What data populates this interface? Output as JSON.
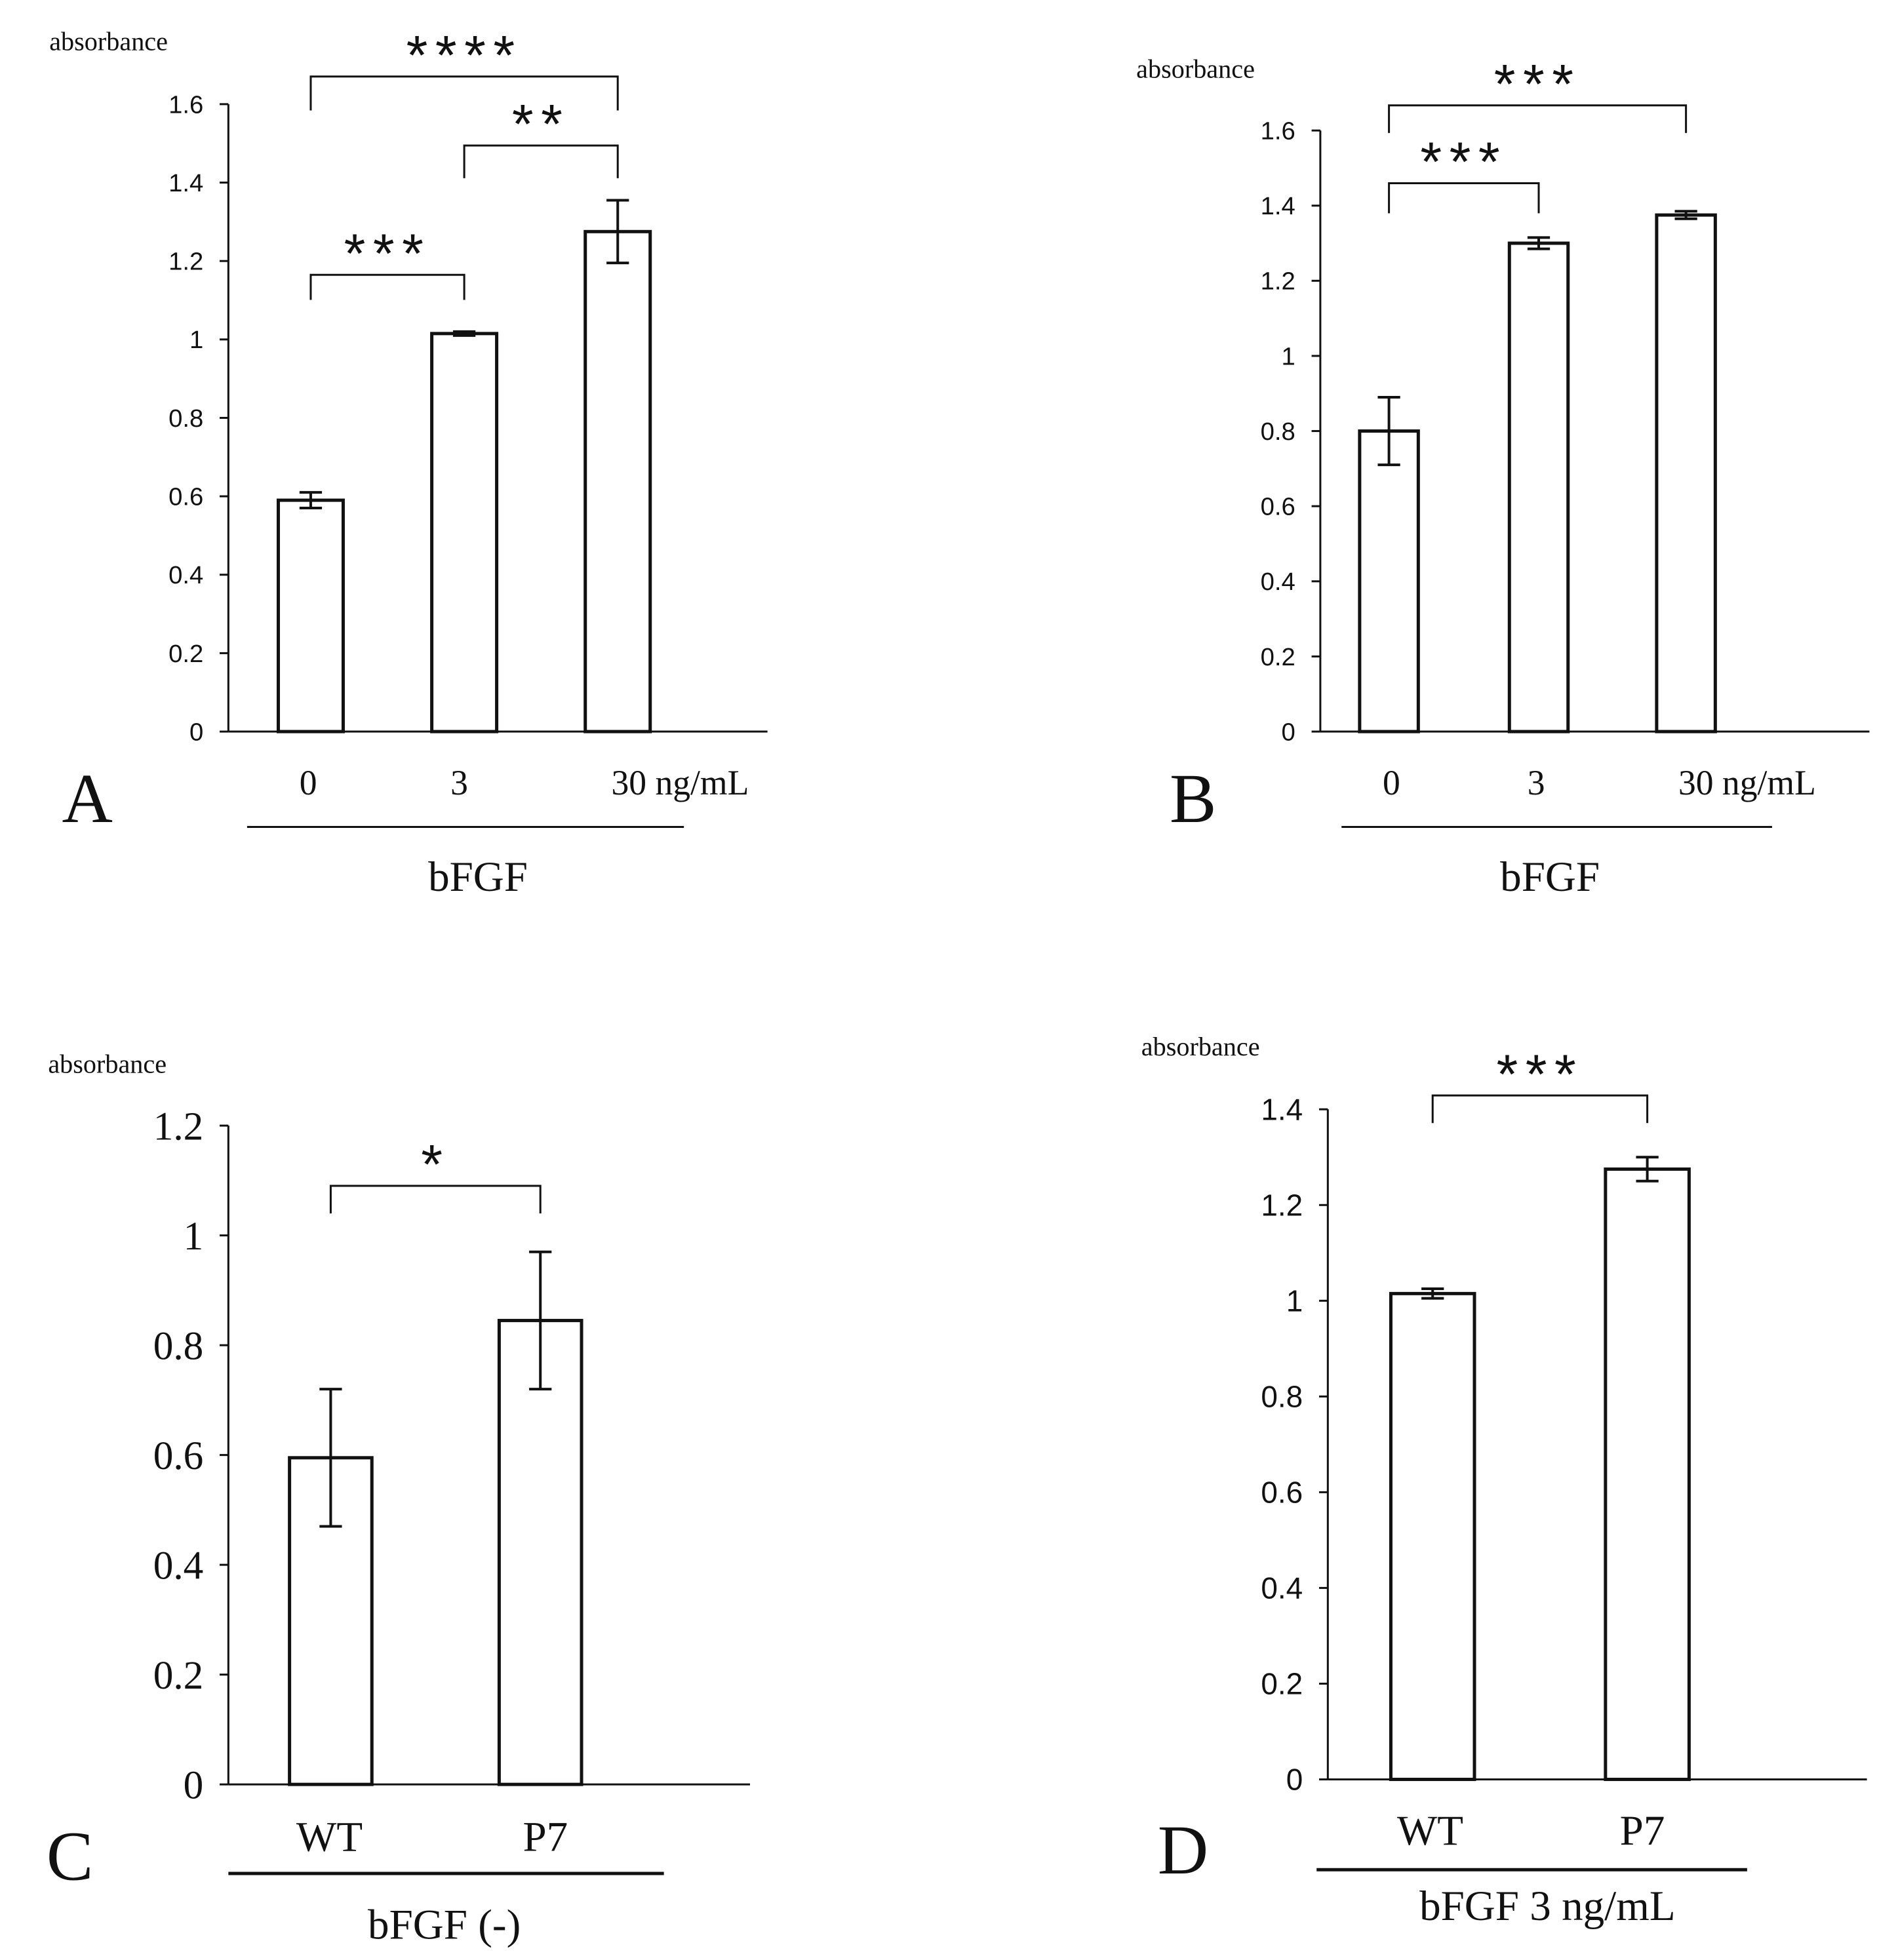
{
  "figure": {
    "colors": {
      "ink": "#111111",
      "bar_fill": "#ffffff",
      "background": "#ffffff"
    }
  },
  "chart_data": [
    {
      "panel": "A",
      "type": "bar",
      "ylabel": "absorbance",
      "categories": [
        "0",
        "3",
        "30 ng/mL"
      ],
      "values": [
        0.59,
        1.015,
        1.275
      ],
      "errors": [
        0.02,
        0.005,
        0.08
      ],
      "yticks": [
        "0",
        "0.2",
        "0.4",
        "0.6",
        "0.8",
        "1",
        "1.2",
        "1.4",
        "1.6"
      ],
      "ylim": [
        0,
        1.6
      ],
      "group_label": "bFGF",
      "significance": [
        {
          "from": 0,
          "to": 1,
          "label": "***"
        },
        {
          "from": 1,
          "to": 2,
          "label": "**"
        },
        {
          "from": 0,
          "to": 2,
          "label": "****"
        }
      ]
    },
    {
      "panel": "B",
      "type": "bar",
      "ylabel": "absorbance",
      "categories": [
        "0",
        "3",
        "30 ng/mL"
      ],
      "values": [
        0.8,
        1.3,
        1.375
      ],
      "errors": [
        0.09,
        0.015,
        0.01
      ],
      "yticks": [
        "0",
        "0.2",
        "0.4",
        "0.6",
        "0.8",
        "1",
        "1.2",
        "1.4",
        "1.6"
      ],
      "ylim": [
        0,
        1.6
      ],
      "group_label": "bFGF",
      "significance": [
        {
          "from": 0,
          "to": 1,
          "label": "***"
        },
        {
          "from": 0,
          "to": 2,
          "label": "***"
        }
      ]
    },
    {
      "panel": "C",
      "type": "bar",
      "ylabel": "absorbance",
      "categories": [
        "WT",
        "P7"
      ],
      "values": [
        0.595,
        0.845
      ],
      "errors": [
        0.125,
        0.125
      ],
      "yticks": [
        "0",
        "0.2",
        "0.4",
        "0.6",
        "0.8",
        "1",
        "1.2"
      ],
      "ylim": [
        0,
        1.2
      ],
      "group_label": "bFGF (-)",
      "significance": [
        {
          "from": 0,
          "to": 1,
          "label": "*"
        }
      ]
    },
    {
      "panel": "D",
      "type": "bar",
      "ylabel": "absorbance",
      "categories": [
        "WT",
        "P7"
      ],
      "values": [
        1.015,
        1.275
      ],
      "errors": [
        0.01,
        0.025
      ],
      "yticks": [
        "0",
        "0.2",
        "0.4",
        "0.6",
        "0.8",
        "1",
        "1.2",
        "1.4"
      ],
      "ylim": [
        0,
        1.4
      ],
      "group_label": "bFGF 3 ng/mL",
      "significance": [
        {
          "from": 0,
          "to": 1,
          "label": "***"
        }
      ]
    }
  ]
}
